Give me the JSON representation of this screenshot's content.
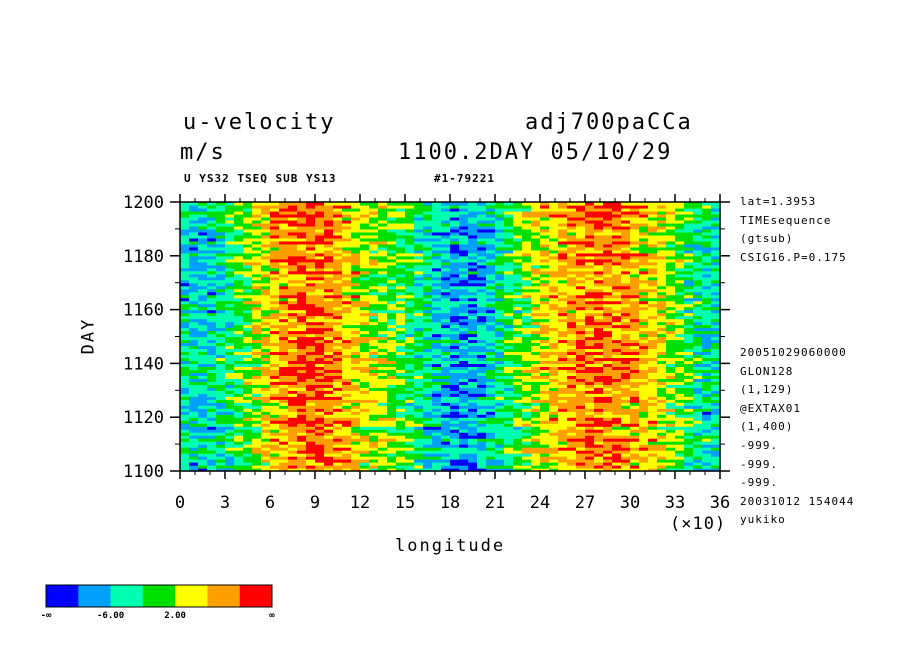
{
  "header": {
    "title": "u-velocity",
    "experiment": "adj700paCCa",
    "units": "m/s",
    "time": "1100.2DAY 05/10/29",
    "subtitle": "U YS32 TSEQ SUB YS13",
    "run_id": "#1-79221"
  },
  "side_info": [
    "lat=1.3953",
    "TIMEsequence",
    "(gtsub)",
    "CSIG16.P=0.175",
    "20051029060000",
    "GLON128",
    "(1,129)",
    "@EXTAX01",
    "(1,400)",
    "-999.",
    "-999.",
    "-999.",
    "20031012 154044",
    "yukiko"
  ],
  "chart_data": {
    "type": "heatmap",
    "xlabel": "longitude",
    "ylabel": "DAY",
    "x_multiplier": "(×10)",
    "xlim": [
      0,
      36
    ],
    "ylim": [
      1100,
      1200
    ],
    "x_ticks": [
      "0",
      "3",
      "6",
      "9",
      "12",
      "15",
      "18",
      "21",
      "24",
      "27",
      "30",
      "33",
      "36"
    ],
    "y_ticks": [
      "1100",
      "1120",
      "1140",
      "1160",
      "1180",
      "1200"
    ],
    "colorbar": {
      "colors": [
        "#0000ff",
        "#00a0ff",
        "#00ffb0",
        "#00e000",
        "#ffff00",
        "#ffa000",
        "#ff0000"
      ],
      "labels": [
        "-∞",
        "-6.00",
        "2.00",
        "∞"
      ]
    }
  },
  "colors": {
    "text": "#000000",
    "background": "#ffffff"
  }
}
